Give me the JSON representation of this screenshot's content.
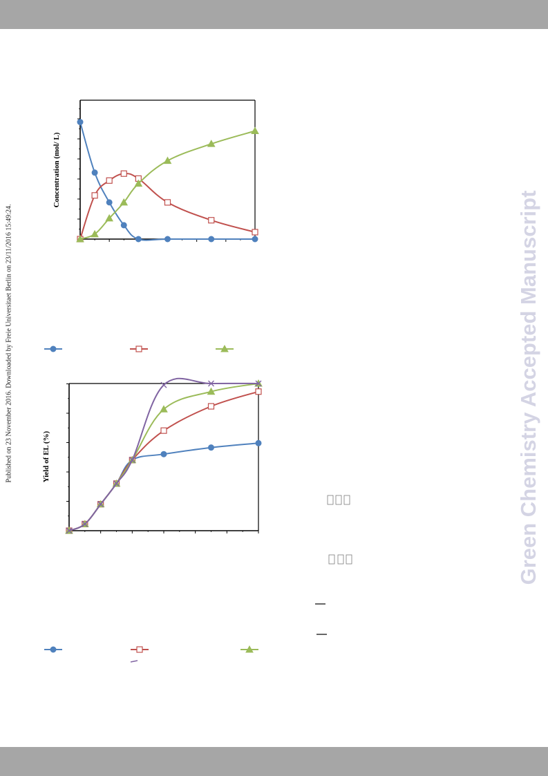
{
  "header": {
    "band_color": "#a6a6a6"
  },
  "side_note": "Published on 23 November 2016. Downloaded by Freie Universitaet Berlin on 23/11/2016 15:49:24.",
  "watermark": "Green Chemistry Accepted Manuscript",
  "colors": {
    "blue": "#4f81bd",
    "red": "#c0504d",
    "green": "#9bbb59",
    "purple": "#8064a2"
  },
  "chart_data": [
    {
      "type": "line",
      "ylabel": "Concentration  (mol/ L)",
      "xlim": [
        0,
        12
      ],
      "ylim": [
        0,
        7
      ],
      "series": [
        {
          "color": "#4f81bd",
          "marker": "circle",
          "x": [
            0,
            1,
            2,
            3,
            4,
            6,
            9,
            12
          ],
          "y": [
            5.9,
            3.35,
            1.85,
            0.7,
            0.0,
            0.0,
            0.0,
            0.0
          ]
        },
        {
          "color": "#c0504d",
          "marker": "square",
          "x": [
            0,
            1,
            2,
            3,
            4,
            6,
            9,
            12
          ],
          "y": [
            0.0,
            2.2,
            2.95,
            3.3,
            3.05,
            1.85,
            0.95,
            0.35
          ]
        },
        {
          "color": "#9bbb59",
          "marker": "triangle",
          "x": [
            0,
            1,
            2,
            3,
            4,
            6,
            9,
            12
          ],
          "y": [
            0.0,
            0.25,
            1.05,
            1.85,
            2.8,
            3.95,
            4.8,
            5.45
          ]
        }
      ]
    },
    {
      "type": "line",
      "ylabel": "Yield of EL (%)",
      "xlim": [
        0,
        12
      ],
      "ylim": [
        0,
        100
      ],
      "series": [
        {
          "color": "#4f81bd",
          "marker": "circle",
          "x": [
            0,
            1,
            2,
            3,
            4,
            6,
            9,
            12
          ],
          "y": [
            0,
            4.5,
            18,
            32,
            48,
            52,
            56.5,
            59.5
          ]
        },
        {
          "color": "#c0504d",
          "marker": "square",
          "x": [
            0,
            1,
            2,
            3,
            4,
            6,
            9,
            12
          ],
          "y": [
            0,
            4.5,
            18,
            32,
            48,
            68,
            84.5,
            94.5
          ]
        },
        {
          "color": "#9bbb59",
          "marker": "triangle",
          "x": [
            0,
            1,
            2,
            3,
            4,
            6,
            9,
            12
          ],
          "y": [
            0,
            4.5,
            18,
            32,
            48,
            82.5,
            94.5,
            100
          ]
        },
        {
          "color": "#8064a2",
          "marker": "cross",
          "x": [
            0,
            1,
            2,
            3,
            4,
            6,
            9,
            12
          ],
          "y": [
            0,
            4.5,
            18,
            32,
            48,
            99,
            100,
            100
          ]
        }
      ]
    }
  ]
}
